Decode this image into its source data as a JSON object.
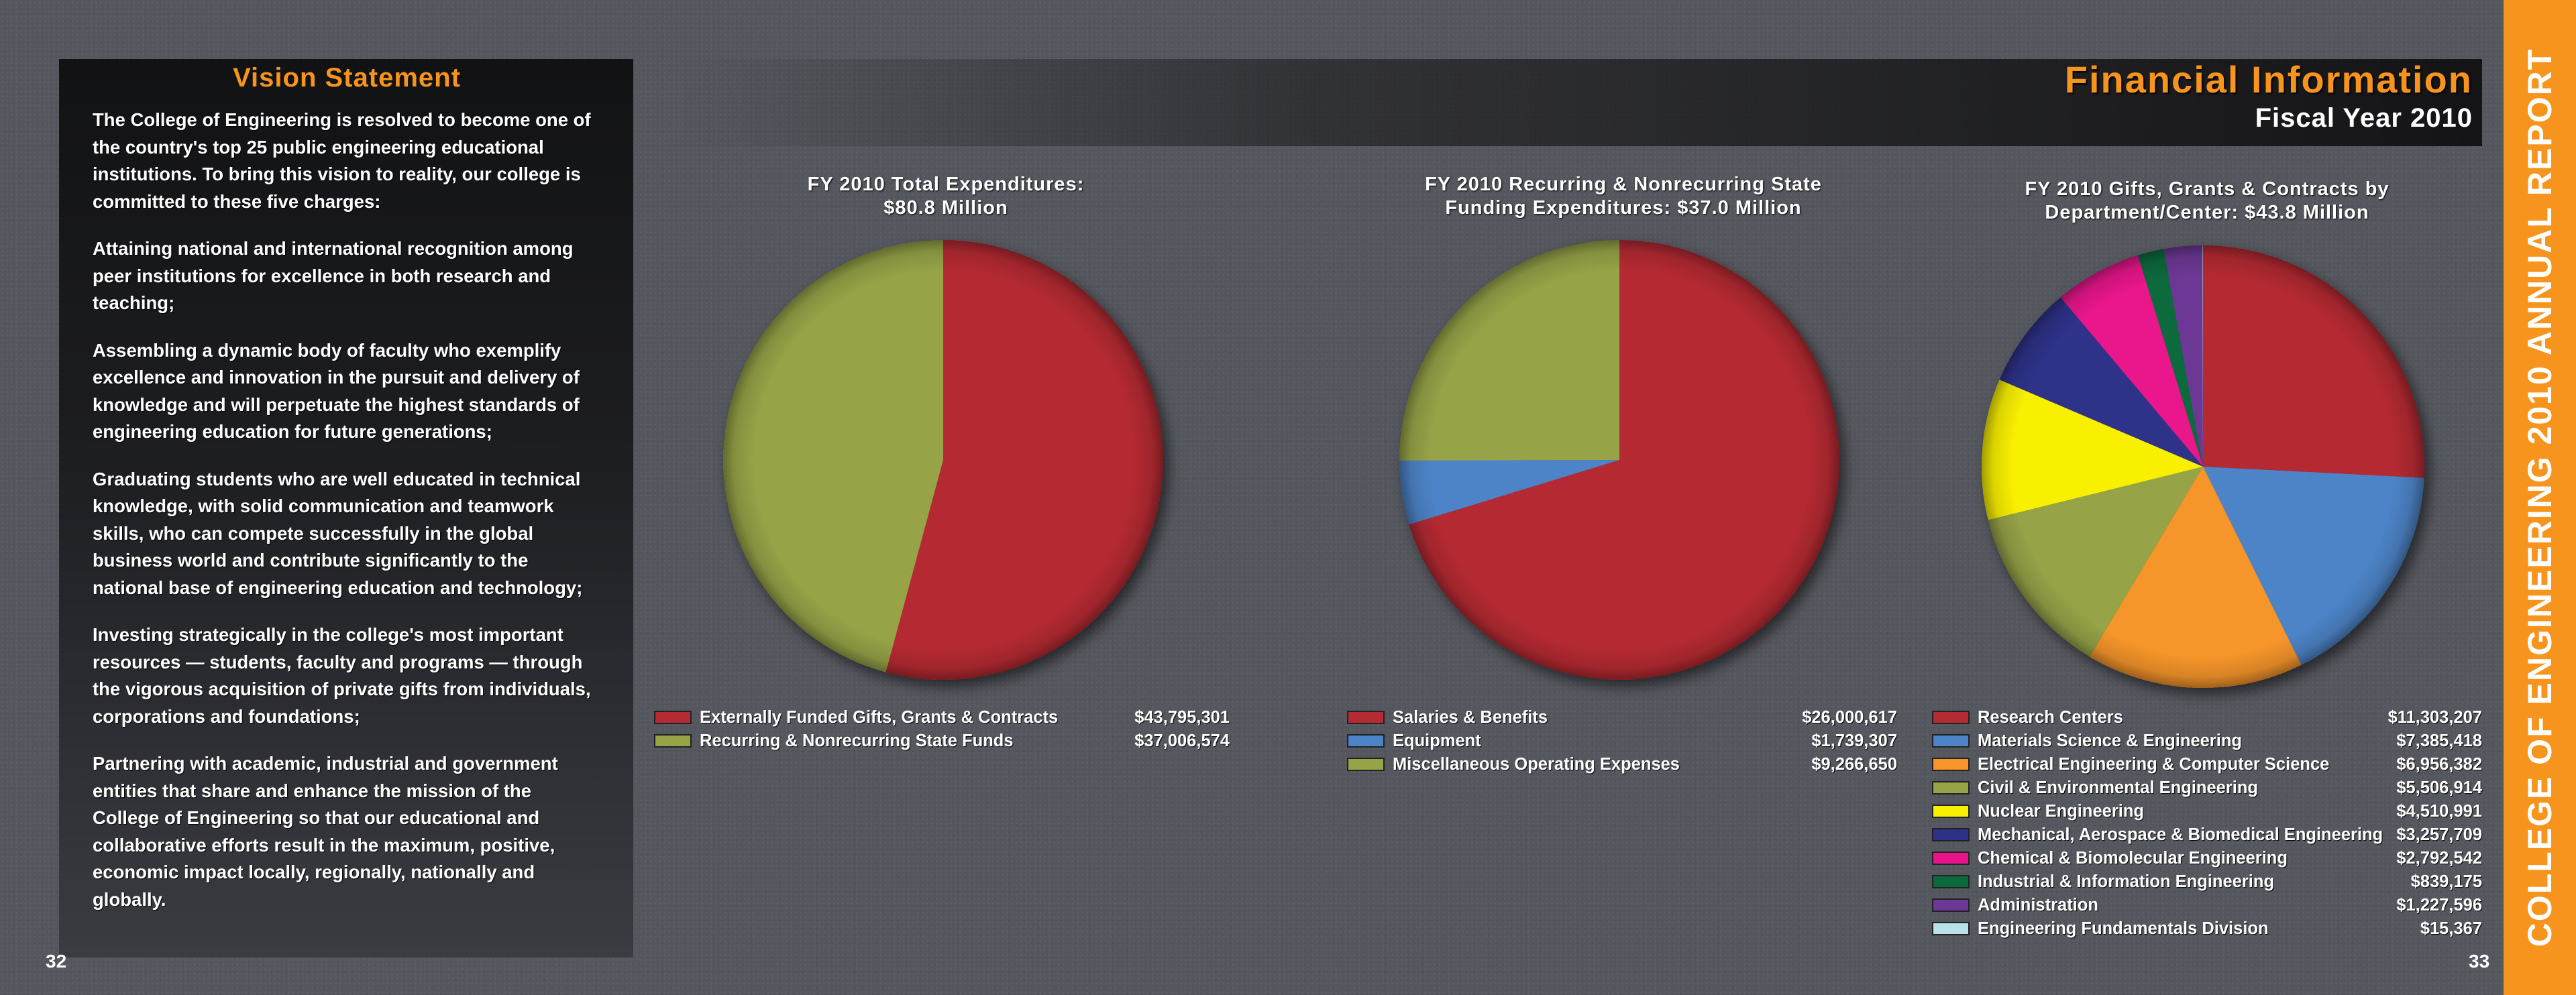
{
  "vision": {
    "title": "Vision Statement",
    "paragraphs": [
      "The College of Engineering is resolved to become one of the country's top 25 public engineering educational institutions. To bring this vision to reality, our college is committed to these five charges:",
      "Attaining national and international recognition among peer institutions for excellence in both research and teaching;",
      "Assembling a dynamic body of faculty who exemplify excellence and innovation in the pursuit and delivery of knowledge and will perpetuate the highest standards of engineering education for future generations;",
      "Graduating students who are well educated in technical knowledge, with solid communication and teamwork skills, who can compete successfully in the global business world and contribute significantly to the national base of engineering education and technology;",
      "Investing strategically in the college's most important resources — students, faculty and programs — through the vigorous acquisition of private gifts from individuals, corporations and foundations;",
      "Partnering with academic, industrial and government entities that share and enhance the mission of the College of Engineering so that our educational and collaborative efforts result in the maximum, positive, economic impact locally, regionally, nationally and globally."
    ]
  },
  "header": {
    "title": "Financial Information",
    "subtitle": "Fiscal Year 2010"
  },
  "side_banner": "COLLEGE OF ENGINEERING 2010 ANNUAL REPORT",
  "page_numbers": {
    "left": "32",
    "right": "33"
  },
  "chart_data": [
    {
      "type": "pie",
      "title_lines": [
        "FY 2010 Total Expenditures:",
        "$80.8 Million"
      ],
      "slices": [
        {
          "label": "Externally Funded Gifts, Grants & Contracts",
          "value": 43795301,
          "display": "$43,795,301",
          "color": "#b52a33"
        },
        {
          "label": "Recurring & Nonrecurring State Funds",
          "value": 37006574,
          "display": "$37,006,574",
          "color": "#96a346"
        }
      ]
    },
    {
      "type": "pie",
      "title_lines": [
        "FY 2010 Recurring & Nonrecurring State",
        "Funding Expenditures: $37.0 Million"
      ],
      "slices": [
        {
          "label": "Salaries & Benefits",
          "value": 26000617,
          "display": "$26,000,617",
          "color": "#b52a33"
        },
        {
          "label": "Equipment",
          "value": 1739307,
          "display": "$1,739,307",
          "color": "#4d84c8"
        },
        {
          "label": "Miscellaneous Operating Expenses",
          "value": 9266650,
          "display": "$9,266,650",
          "color": "#96a346"
        }
      ]
    },
    {
      "type": "pie",
      "title_lines": [
        "FY 2010 Gifts, Grants & Contracts by",
        "Department/Center: $43.8 Million"
      ],
      "slices": [
        {
          "label": "Research Centers",
          "value": 11303207,
          "display": "$11,303,207",
          "color": "#b52a33"
        },
        {
          "label": "Materials Science & Engineering",
          "value": 7385418,
          "display": "$7,385,418",
          "color": "#4d84c8"
        },
        {
          "label": "Electrical Engineering & Computer Science",
          "value": 6956382,
          "display": "$6,956,382",
          "color": "#f5952a"
        },
        {
          "label": "Civil & Environmental Engineering",
          "value": 5506914,
          "display": "$5,506,914",
          "color": "#96a346"
        },
        {
          "label": "Nuclear Engineering",
          "value": 4510991,
          "display": "$4,510,991",
          "color": "#f9f000"
        },
        {
          "label": "Mechanical, Aerospace & Biomedical Engineering",
          "value": 3257709,
          "display": "$3,257,709",
          "color": "#2f3189"
        },
        {
          "label": "Chemical & Biomolecular Engineering",
          "value": 2792542,
          "display": "$2,792,542",
          "color": "#e9148c"
        },
        {
          "label": "Industrial & Information Engineering",
          "value": 839175,
          "display": "$839,175",
          "color": "#0b6a3c"
        },
        {
          "label": "Administration",
          "value": 1227596,
          "display": "$1,227,596",
          "color": "#6d3895"
        },
        {
          "label": "Engineering Fundamentals Division",
          "value": 15367,
          "display": "$15,367",
          "color": "#b8e2e8"
        }
      ]
    }
  ]
}
